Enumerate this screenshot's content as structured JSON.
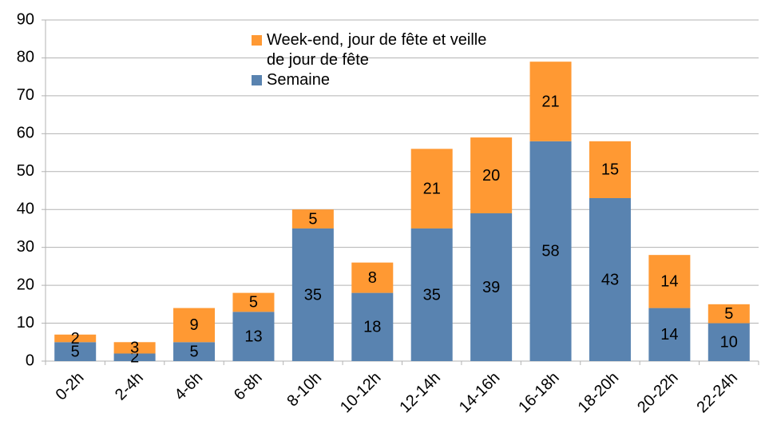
{
  "chart_data": {
    "type": "stacked_bar",
    "categories": [
      "0-2h",
      "2-4h",
      "4-6h",
      "6-8h",
      "8-10h",
      "10-12h",
      "12-14h",
      "14-16h",
      "16-18h",
      "18-20h",
      "20-22h",
      "22-24h"
    ],
    "series": [
      {
        "name": "Semaine",
        "color": "#5983b0",
        "values": [
          5,
          2,
          5,
          13,
          35,
          18,
          35,
          39,
          58,
          43,
          14,
          10
        ]
      },
      {
        "name": "Week-end, jour de fête et veille de jour de fête",
        "color": "#ff9933",
        "values": [
          2,
          3,
          9,
          5,
          5,
          8,
          21,
          20,
          21,
          15,
          14,
          5
        ]
      }
    ],
    "ylim": [
      0,
      90
    ],
    "yticks": [
      0,
      10,
      20,
      30,
      40,
      50,
      60,
      70,
      80,
      90
    ],
    "grid": true
  }
}
